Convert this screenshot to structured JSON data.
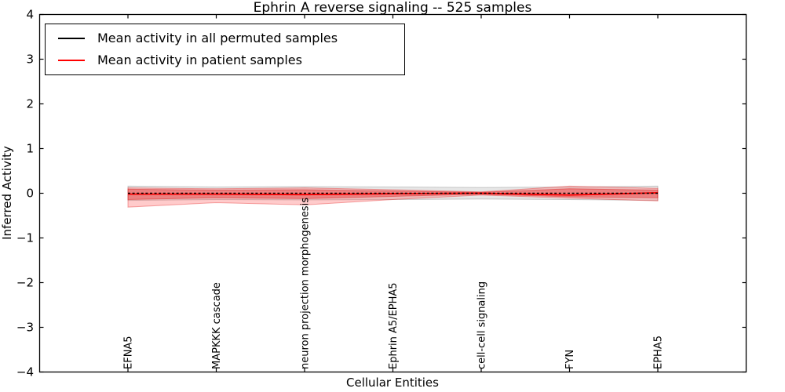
{
  "figure": {
    "background": "#ffffff"
  },
  "chart_data": {
    "type": "line",
    "title": "Ephrin A  reverse signaling -- 525 samples",
    "xlabel": "Cellular Entities",
    "ylabel": "Inferred Activity",
    "ylim": [
      -4,
      4
    ],
    "xlim": [
      -1,
      7
    ],
    "grid": false,
    "legend_position": "upper left",
    "yticks": [
      {
        "value": 4,
        "label": "4"
      },
      {
        "value": 3,
        "label": "3"
      },
      {
        "value": 2,
        "label": "2"
      },
      {
        "value": 1,
        "label": "1"
      },
      {
        "value": 0,
        "label": "0"
      },
      {
        "value": -1,
        "label": "−1"
      },
      {
        "value": -2,
        "label": "−2"
      },
      {
        "value": -3,
        "label": "−3"
      },
      {
        "value": -4,
        "label": "−4"
      }
    ],
    "categories": [
      "EFNA5",
      "MAPKKK cascade",
      "neuron projection morphogenesis",
      "Ephrin A5/EPHA5",
      "cell-cell signaling",
      "FYN",
      "EPHA5"
    ],
    "x": [
      0,
      1,
      2,
      3,
      4,
      5,
      6
    ],
    "series": [
      {
        "name": "Mean activity in all permuted samples",
        "color": "#000000",
        "style": "dashed",
        "values": [
          0,
          0,
          0,
          0,
          0,
          0,
          0
        ]
      },
      {
        "name": "Mean activity in patient samples",
        "color": "#ff0000",
        "style": "solid",
        "values": [
          -0.02,
          -0.02,
          -0.03,
          -0.01,
          0.0,
          -0.04,
          0.01
        ]
      }
    ],
    "bands": [
      {
        "name": "permuted-std-band",
        "fill": "rgba(128,128,128,0.20)",
        "stroke": "rgba(120,120,120,0.35)",
        "upper": [
          0.16,
          0.14,
          0.15,
          0.14,
          0.13,
          0.14,
          0.16
        ],
        "lower": [
          -0.16,
          -0.14,
          -0.15,
          -0.14,
          -0.13,
          -0.14,
          -0.16
        ]
      },
      {
        "name": "patient-std-outer-band",
        "fill": "rgba(255,70,70,0.28)",
        "stroke": "rgba(230,40,40,0.40)",
        "upper": [
          0.12,
          0.1,
          0.12,
          0.08,
          0.03,
          0.16,
          0.11
        ],
        "lower": [
          -0.31,
          -0.21,
          -0.26,
          -0.14,
          -0.04,
          -0.11,
          -0.17
        ]
      },
      {
        "name": "patient-std-inner-band",
        "fill": "rgba(235,40,40,0.38)",
        "stroke": "rgba(220,30,30,0.45)",
        "upper": [
          0.09,
          0.07,
          0.08,
          0.05,
          0.02,
          0.1,
          0.07
        ],
        "lower": [
          -0.14,
          -0.1,
          -0.12,
          -0.07,
          -0.02,
          -0.08,
          -0.1
        ]
      }
    ],
    "legend": [
      {
        "label": "Mean activity in all permuted samples",
        "color": "#000000"
      },
      {
        "label": "Mean activity in patient samples",
        "color": "#ff0000"
      }
    ]
  }
}
